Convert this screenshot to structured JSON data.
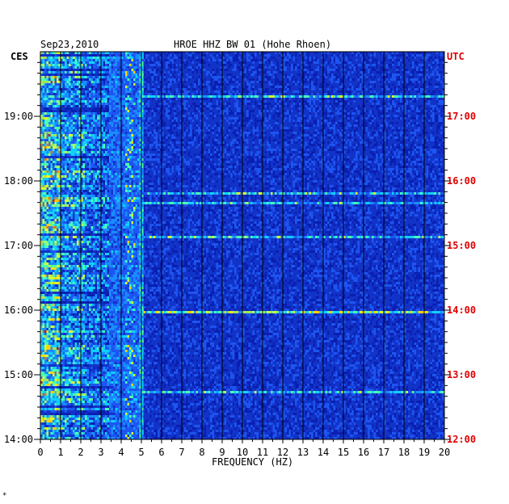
{
  "chart_data": {
    "type": "heatmap",
    "date": "Sep23,2010",
    "title": "HROE HHZ BW 01 (Hohe Rhoen)",
    "left_timezone": "CES",
    "right_timezone": "UTC",
    "xlabel": "FREQUENCY (HZ)",
    "xlim": [
      0,
      20
    ],
    "x_ticks": [
      "0",
      "1",
      "2",
      "3",
      "4",
      "5",
      "6",
      "7",
      "8",
      "9",
      "10",
      "11",
      "12",
      "13",
      "14",
      "15",
      "16",
      "17",
      "18",
      "19",
      "20"
    ],
    "left_time_labels": [
      "19:00",
      "18:00",
      "17:00",
      "16:00",
      "15:00",
      "14:00"
    ],
    "right_time_labels": [
      "17:00",
      "16:00",
      "15:00",
      "14:00",
      "13:00",
      "12:00"
    ],
    "time_range_ces": [
      "14:00",
      "19:50"
    ],
    "footer_mark": "*",
    "colors": {
      "background": "#0a1fb0",
      "low": "#1540e0",
      "mid": "#00c8ff",
      "high": "#ffe600",
      "peak": "#e60000",
      "utc_text": "#e00000",
      "grid": "#000000"
    },
    "energy_profile": {
      "description": "Spectral energy is concentrated at 0-3.5 Hz with strongest values near 0.2-1 Hz; narrow persistent line near 5 Hz; intermittent horizontal bursts across all frequencies (notably around 16:00 CES).",
      "band_hz": [
        0.2,
        3.4
      ],
      "line_hz": 5.0
    }
  }
}
